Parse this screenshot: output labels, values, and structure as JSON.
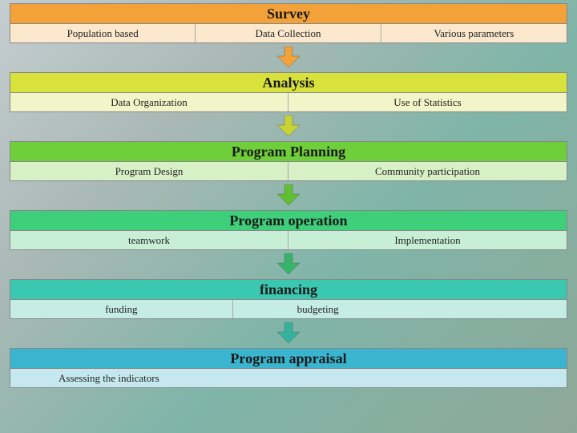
{
  "type": "flowchart",
  "background_gradient": [
    "#c5cdd0",
    "#a8b8b5",
    "#7fb5a8",
    "#8fa898"
  ],
  "title_fontsize": 18,
  "sub_fontsize": 13,
  "font_family": "Georgia, serif",
  "arrow_size": 12,
  "stages": [
    {
      "title": "Survey",
      "header_bg": "#f2a238",
      "sub_bg": "#fce8cc",
      "arrow_color": "#f2a238",
      "columns": 3,
      "items": [
        "Population based",
        "Data Collection",
        "Various parameters"
      ]
    },
    {
      "title": "Analysis",
      "header_bg": "#d8e23a",
      "sub_bg": "#f2f5c7",
      "arrow_color": "#c9d334",
      "columns": 2,
      "items": [
        "Data Organization",
        "Use of Statistics"
      ]
    },
    {
      "title": "Program Planning",
      "header_bg": "#6fcf3a",
      "sub_bg": "#d7f0c5",
      "arrow_color": "#5fbf30",
      "columns": 2,
      "items": [
        "Program Design",
        "Community participation"
      ]
    },
    {
      "title": "Program operation",
      "header_bg": "#3ecf7a",
      "sub_bg": "#c7efd6",
      "arrow_color": "#35b56a",
      "columns": 2,
      "items": [
        "teamwork",
        "Implementation"
      ]
    },
    {
      "title": "financing",
      "header_bg": "#3ac9b0",
      "sub_bg": "#c6ede5",
      "arrow_color": "#34b29c",
      "columns": "2b",
      "items": [
        "funding",
        "budgeting"
      ]
    },
    {
      "title": "Program appraisal",
      "header_bg": "#3ab5cf",
      "sub_bg": "#c5e8ef",
      "arrow_color": "",
      "columns": 1,
      "items": [
        "Assessing the indicators"
      ]
    }
  ]
}
